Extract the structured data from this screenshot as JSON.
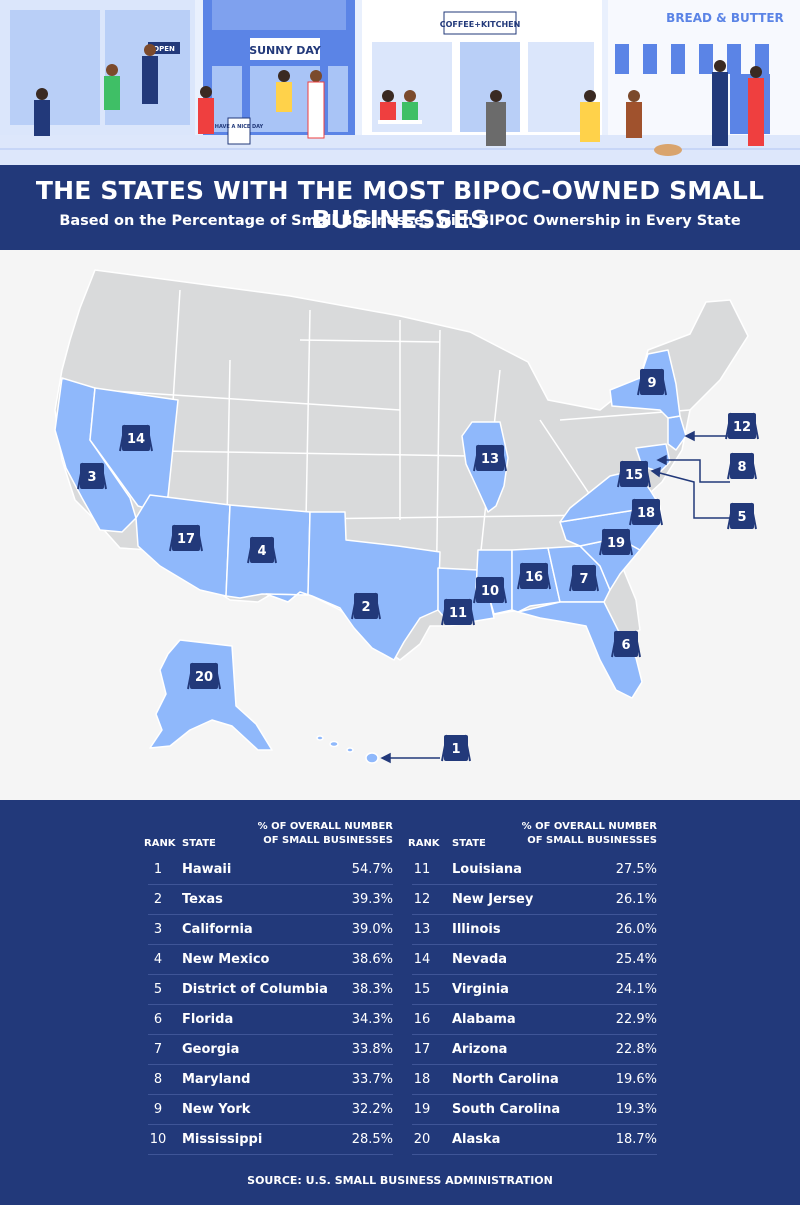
{
  "header": {
    "title": "THE STATES WITH THE MOST BIPOC-OWNED SMALL BUSINESSES",
    "subtitle": "Based on the Percentage of Small Businesses with BIPOC Ownership in Every State"
  },
  "illustration": {
    "signs": {
      "open": "OPEN",
      "sunny_day": "SUNNY DAY",
      "coffee_kitchen": "COFFEE+KITCHEN",
      "bread_butter": "BREAD & BUTTER",
      "have_nice_day": "HAVE A NICE DAY"
    }
  },
  "map": {
    "colors": {
      "highlight": "#8fb8fb",
      "default": "#d9dadb",
      "badge": "#22397a",
      "border": "#ffffff"
    },
    "badges": [
      "1",
      "2",
      "3",
      "4",
      "5",
      "6",
      "7",
      "8",
      "9",
      "10",
      "11",
      "12",
      "13",
      "14",
      "15",
      "16",
      "17",
      "18",
      "19",
      "20"
    ]
  },
  "table": {
    "headers": {
      "rank": "RANK",
      "state": "STATE",
      "pct_line1": "% OF OVERALL NUMBER",
      "pct_line2": "OF SMALL BUSINESSES"
    },
    "left": [
      {
        "rank": "1",
        "state": "Hawaii",
        "pct": "54.7%"
      },
      {
        "rank": "2",
        "state": "Texas",
        "pct": "39.3%"
      },
      {
        "rank": "3",
        "state": "California",
        "pct": "39.0%"
      },
      {
        "rank": "4",
        "state": "New Mexico",
        "pct": "38.6%"
      },
      {
        "rank": "5",
        "state": "District of Columbia",
        "pct": "38.3%"
      },
      {
        "rank": "6",
        "state": "Florida",
        "pct": "34.3%"
      },
      {
        "rank": "7",
        "state": "Georgia",
        "pct": "33.8%"
      },
      {
        "rank": "8",
        "state": "Maryland",
        "pct": "33.7%"
      },
      {
        "rank": "9",
        "state": "New York",
        "pct": "32.2%"
      },
      {
        "rank": "10",
        "state": "Mississippi",
        "pct": "28.5%"
      }
    ],
    "right": [
      {
        "rank": "11",
        "state": "Louisiana",
        "pct": "27.5%"
      },
      {
        "rank": "12",
        "state": "New Jersey",
        "pct": "26.1%"
      },
      {
        "rank": "13",
        "state": "Illinois",
        "pct": "26.0%"
      },
      {
        "rank": "14",
        "state": "Nevada",
        "pct": "25.4%"
      },
      {
        "rank": "15",
        "state": "Virginia",
        "pct": "24.1%"
      },
      {
        "rank": "16",
        "state": "Alabama",
        "pct": "22.9%"
      },
      {
        "rank": "17",
        "state": "Arizona",
        "pct": "22.8%"
      },
      {
        "rank": "18",
        "state": "North Carolina",
        "pct": "19.6%"
      },
      {
        "rank": "19",
        "state": "South Carolina",
        "pct": "19.3%"
      },
      {
        "rank": "20",
        "state": "Alaska",
        "pct": "18.7%"
      }
    ],
    "source": "SOURCE: U.S. SMALL BUSINESS ADMINISTRATION"
  }
}
